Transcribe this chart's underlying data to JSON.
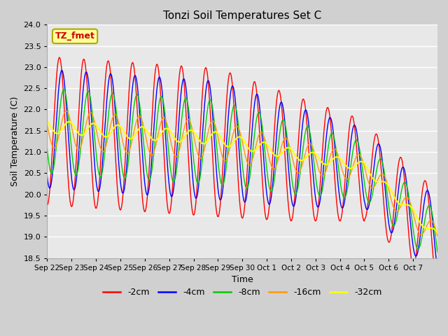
{
  "title": "Tonzi Soil Temperatures Set C",
  "xlabel": "Time",
  "ylabel": "Soil Temperature (C)",
  "ylim": [
    18.5,
    24.0
  ],
  "yticks": [
    18.5,
    19.0,
    19.5,
    20.0,
    20.5,
    21.0,
    21.5,
    22.0,
    22.5,
    23.0,
    23.5,
    24.0
  ],
  "colors": {
    "-2cm": "#ff0000",
    "-4cm": "#0000ff",
    "-8cm": "#00cc00",
    "-16cm": "#ff9900",
    "-32cm": "#ffff00"
  },
  "annotation_label": "TZ_fmet",
  "annotation_color": "#cc0000",
  "annotation_bg": "#ffff99",
  "tick_labels": [
    "Sep 22",
    "Sep 23",
    "Sep 24",
    "Sep 25",
    "Sep 26",
    "Sep 27",
    "Sep 28",
    "Sep 29",
    "Sep 30",
    "Oct 1",
    "Oct 2",
    "Oct 3",
    "Oct 4",
    "Oct 5",
    "Oct 6",
    "Oct 7"
  ],
  "n_days": 16,
  "figsize": [
    6.4,
    4.8
  ],
  "dpi": 100
}
